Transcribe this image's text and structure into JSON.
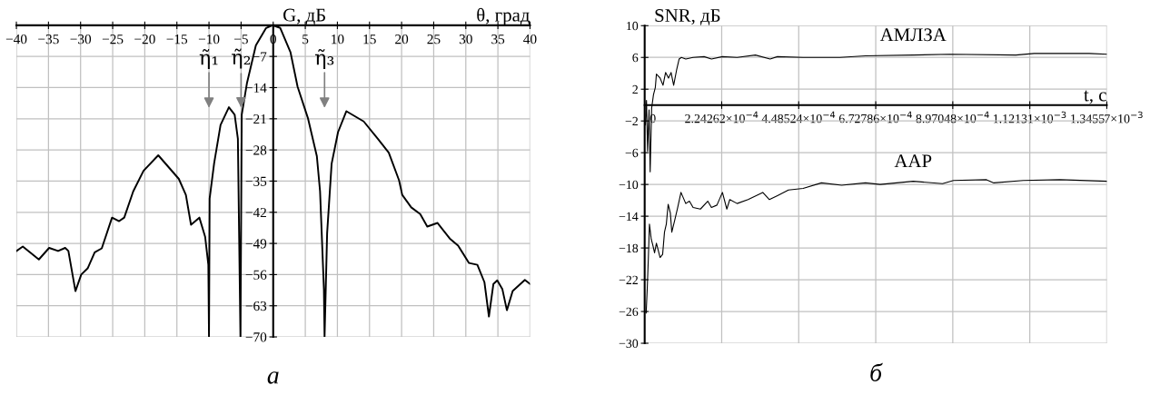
{
  "chart_data": [
    {
      "type": "line",
      "xlabel": "θ, град",
      "ylabel": "G, дБ",
      "xlim": [
        -40,
        40
      ],
      "ylim": [
        -70,
        0
      ],
      "grid": true,
      "xticks": [
        {
          "value": -40,
          "label": "−40"
        },
        {
          "value": -35,
          "label": "−35"
        },
        {
          "value": -30,
          "label": "−30"
        },
        {
          "value": -25,
          "label": "−25"
        },
        {
          "value": -20,
          "label": "−20"
        },
        {
          "value": -15,
          "label": "−15"
        },
        {
          "value": -10,
          "label": "−10"
        },
        {
          "value": -5,
          "label": "−5"
        },
        0,
        5,
        10,
        15,
        20,
        25,
        30,
        35,
        40
      ],
      "yticks": [
        {
          "value": -7,
          "label": "−7"
        },
        {
          "value": -14,
          "label": "−14"
        },
        {
          "value": -21,
          "label": "−21"
        },
        {
          "value": -28,
          "label": "−28"
        },
        {
          "value": -35,
          "label": "−35"
        },
        {
          "value": -42,
          "label": "−42"
        },
        {
          "value": -49,
          "label": "−49"
        },
        {
          "value": -56,
          "label": "−56"
        },
        {
          "value": -63,
          "label": "−63"
        },
        {
          "value": -70,
          "label": "−70"
        }
      ],
      "series": [
        {
          "color": "#000000",
          "x": [
            -40,
            -39,
            -36.5,
            -34.9,
            -33.5,
            -32.4,
            -31.9,
            -30.8,
            -29.9,
            -28.9,
            -27.8,
            -26.7,
            -25.1,
            -24,
            -23.2,
            -21.8,
            -20.2,
            -17.9,
            -14.7,
            -13.6,
            -12.8,
            -11.5,
            -10.6,
            -10.1,
            -10,
            -9.9,
            -9.2,
            -8.2,
            -6.9,
            -6,
            -5.5,
            -5.1,
            -4.9,
            -4.1,
            -2.7,
            -1.1,
            -0.1,
            1.1,
            2.7,
            3.8,
            5.4,
            6.8,
            7.3,
            7.9,
            8,
            8.4,
            9.1,
            10.1,
            11.4,
            14.1,
            16.3,
            18,
            19.6,
            20.1,
            21.5,
            22.9,
            24,
            25.6,
            27.5,
            28.8,
            30.5,
            31.8,
            32.9,
            33.6,
            34.3,
            34.9,
            35.7,
            36.4,
            37.3,
            39.2,
            40
          ],
          "values": [
            -50.7,
            -49.7,
            -52.6,
            -50,
            -50.7,
            -50,
            -50.7,
            -59.7,
            -56,
            -54.6,
            -51,
            -50.1,
            -43.2,
            -44,
            -43.2,
            -37.3,
            -32.7,
            -29.2,
            -34.5,
            -38.1,
            -44.8,
            -43.2,
            -47.5,
            -53.8,
            -70,
            -38.9,
            -31,
            -22.4,
            -18.4,
            -20.1,
            -25.5,
            -70,
            -20.1,
            -13.1,
            -4.5,
            -0.6,
            0,
            -0.6,
            -6.1,
            -13.8,
            -20.8,
            -29.4,
            -37.3,
            -59.3,
            -70,
            -46.7,
            -31.1,
            -24,
            -19.3,
            -21.6,
            -25.5,
            -28.6,
            -34.8,
            -38.1,
            -40.9,
            -42.4,
            -45.2,
            -44.4,
            -47.9,
            -49.5,
            -53.4,
            -53.8,
            -57.7,
            -65.4,
            -58.1,
            -57.3,
            -59.3,
            -64,
            -59.7,
            -57.2,
            -58.1
          ]
        }
      ],
      "annotations": [
        "η̃₁",
        {
          "text": "η̃₂",
          "x": -5,
          "y": -18.5
        },
        "η̃₃",
        "а"
      ]
    },
    {
      "type": "line",
      "xlabel": "t, с",
      "ylabel": "SNR, дБ",
      "xlim": [
        0,
        0.00134557
      ],
      "ylim": [
        -30,
        10
      ],
      "grid": true,
      "xticks": [
        0,
        {
          "value": 0.000224262,
          "label": "2.24262×10$^{−4}$"
        },
        {
          "value": 0.000448524,
          "label": "4.48524×10$^{−4}$"
        },
        {
          "value": 0.000672786,
          "label": "6.72786×10$^{−4}$"
        },
        {
          "value": 0.000897048,
          "label": "8.97048×10$^{−4}$"
        },
        {
          "value": 0.00112131,
          "label": "1.12131×10$^{−3}$"
        },
        {
          "value": 0.00134557,
          "label": "1.34557×10$^{−3}$"
        }
      ],
      "yticks": [
        10,
        6,
        2,
        {
          "value": -2,
          "label": "−2"
        },
        {
          "value": -6,
          "label": "−6"
        },
        {
          "value": -10,
          "label": "−10"
        },
        {
          "value": -14,
          "label": "−14"
        },
        {
          "value": -18,
          "label": "−18"
        },
        {
          "value": -22,
          "label": "−22"
        },
        {
          "value": -26,
          "label": "−26"
        },
        {
          "value": -30,
          "label": "−30"
        }
      ],
      "series": [
        {
          "name": "АМЛЗА",
          "color": "#000000",
          "x": [
            2.1e-06,
            5.3e-06,
            8.5e-06,
            1.28e-05,
            1.6e-05,
            2.03e-05,
            2.56e-05,
            3.1e-05,
            3.42e-05,
            4.49e-05,
            5.34e-05,
            6.09e-05,
            6.94e-05,
            7.69e-05,
            8.44e-05,
            9.29e-05,
            0.0001004,
            0.0001068,
            0.0001196,
            0.000141,
            0.000173,
            0.0001944,
            0.0002264,
            0.0002691,
            0.0003225,
            0.0003652,
            0.0003866,
            0.0004613,
            0.0005681,
            0.0006429,
            0.0007817,
            0.0008885,
            0.0010807,
            0.0011341,
            0.0012943,
            0.0013455
          ],
          "values": [
            -2.5,
            0.6,
            -5.8,
            -0.6,
            -8.4,
            -0.4,
            1.3,
            2.2,
            3.9,
            3.4,
            2.5,
            4.1,
            3.4,
            4.1,
            2.5,
            4.4,
            5.8,
            6,
            5.8,
            6,
            6.1,
            5.8,
            6.1,
            6,
            6.3,
            5.8,
            6.1,
            6,
            6,
            6.2,
            6.3,
            6.4,
            6.3,
            6.5,
            6.5,
            6.4
          ]
        },
        {
          "name": "ААР",
          "color": "#000000",
          "x": [
            4.3e-06,
            7.5e-06,
            1.07e-05,
            1.39e-05,
            1.92e-05,
            2.35e-05,
            2.88e-05,
            3.42e-05,
            3.95e-05,
            4.49e-05,
            5.23e-05,
            5.77e-05,
            6.3e-05,
            6.84e-05,
            7.48e-05,
            7.9e-05,
            8.76e-05,
            9.61e-05,
            0.0001057,
            0.0001196,
            0.0001303,
            0.000141,
            0.0001623,
            0.0001837,
            0.0001944,
            0.0002104,
            0.0002264,
            0.0002392,
            0.0002478,
            0.0002691,
            0.0003011,
            0.0003439,
            0.0003631,
            0.0003866,
            0.0004186,
            0.0004613,
            0.0005147,
            0.0005735,
            0.0006429,
            0.0006856,
            0.0007817,
            0.0008672,
            0.0008992,
            0.0009953,
            0.0010166,
            0.0011021,
            0.0012089,
            0.0013455
          ],
          "values": [
            -26.2,
            -23.1,
            -19.3,
            -15,
            -16.9,
            -17.6,
            -18.6,
            -17.4,
            -18.3,
            -19.2,
            -18.8,
            -16,
            -15,
            -12.5,
            -13.6,
            -16,
            -14.5,
            -12.9,
            -11,
            -12.4,
            -12.1,
            -12.9,
            -13.1,
            -12.1,
            -12.9,
            -12.6,
            -11,
            -13.1,
            -11.9,
            -12.4,
            -11.9,
            -11,
            -11.9,
            -11.4,
            -10.7,
            -10.5,
            -9.8,
            -10.1,
            -9.8,
            -10,
            -9.6,
            -9.9,
            -9.5,
            -9.4,
            -9.8,
            -9.5,
            -9.4,
            -9.6
          ]
        }
      ],
      "annotations": [
        "б"
      ]
    }
  ]
}
